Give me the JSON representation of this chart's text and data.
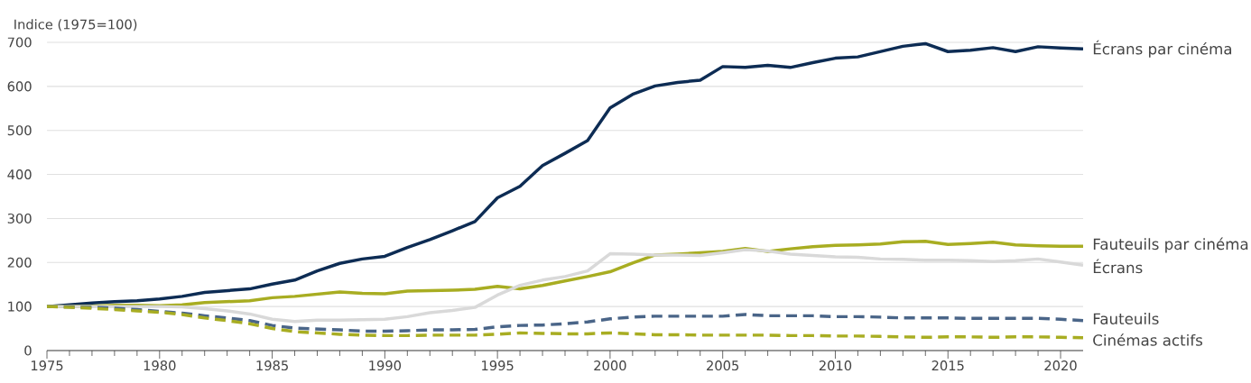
{
  "chart_data": {
    "type": "line",
    "ylabel": "Indice (1975=100)",
    "x": [
      1975,
      1976,
      1977,
      1978,
      1979,
      1980,
      1981,
      1982,
      1983,
      1984,
      1985,
      1986,
      1987,
      1988,
      1989,
      1990,
      1991,
      1992,
      1993,
      1994,
      1995,
      1996,
      1997,
      1998,
      1999,
      2000,
      2001,
      2002,
      2003,
      2004,
      2005,
      2006,
      2007,
      2008,
      2009,
      2010,
      2011,
      2012,
      2013,
      2014,
      2015,
      2016,
      2017,
      2018,
      2019,
      2020,
      2021
    ],
    "series": [
      {
        "name": "Écrans par cinéma",
        "color": "#0d2c54",
        "line_style": "solid",
        "values": [
          100,
          104,
          108,
          111,
          113,
          117,
          123,
          132,
          136,
          140,
          151,
          160,
          181,
          198,
          208,
          214,
          234,
          252,
          272,
          293,
          347,
          373,
          420,
          448,
          477,
          551,
          582,
          601,
          609,
          614,
          645,
          643,
          648,
          643,
          654,
          664,
          667,
          679,
          691,
          697,
          679,
          682,
          688,
          679,
          690,
          687,
          685
        ]
      },
      {
        "name": "Fauteuils par cinéma",
        "color": "#a8ad22",
        "line_style": "solid",
        "values": [
          100,
          100,
          101,
          103,
          103,
          102,
          104,
          109,
          111,
          113,
          120,
          123,
          128,
          133,
          130,
          129,
          135,
          136,
          137,
          139,
          146,
          140,
          148,
          158,
          168,
          179,
          199,
          217,
          219,
          222,
          225,
          232,
          225,
          231,
          236,
          239,
          240,
          242,
          247,
          248,
          241,
          243,
          246,
          240,
          238,
          237,
          237
        ]
      },
      {
        "name": "Écrans",
        "color": "#d9d9d9",
        "line_style": "solid",
        "values": [
          100,
          100,
          100,
          100,
          100,
          100,
          99,
          95,
          90,
          83,
          71,
          66,
          69,
          69,
          70,
          71,
          77,
          86,
          91,
          98,
          126,
          148,
          160,
          168,
          181,
          220,
          219,
          217,
          217,
          216,
          222,
          229,
          226,
          219,
          216,
          213,
          212,
          208,
          207,
          205,
          205,
          204,
          202,
          204,
          208,
          201,
          194
        ]
      },
      {
        "name": "Fauteuils",
        "color": "#4a6588",
        "line_style": "dashed",
        "values": [
          100,
          99,
          98,
          96,
          93,
          89,
          85,
          79,
          74,
          68,
          57,
          51,
          49,
          47,
          44,
          44,
          45,
          47,
          47,
          48,
          54,
          57,
          58,
          61,
          65,
          72,
          76,
          78,
          78,
          78,
          78,
          82,
          79,
          79,
          79,
          77,
          77,
          76,
          74,
          74,
          74,
          73,
          73,
          73,
          73,
          71,
          68
        ]
      },
      {
        "name": "Cinémas actifs",
        "color": "#a8ad22",
        "line_style": "dashed",
        "values": [
          100,
          98,
          96,
          93,
          90,
          87,
          82,
          74,
          68,
          61,
          50,
          43,
          40,
          37,
          35,
          34,
          34,
          35,
          35,
          35,
          37,
          40,
          39,
          38,
          38,
          40,
          38,
          36,
          36,
          35,
          35,
          35,
          35,
          34,
          34,
          33,
          33,
          32,
          31,
          30,
          31,
          31,
          30,
          31,
          31,
          30,
          29
        ]
      }
    ],
    "xlim": [
      1975,
      2021
    ],
    "xticks": [
      1975,
      1980,
      1985,
      1990,
      1995,
      2000,
      2005,
      2010,
      2015,
      2020
    ],
    "ylim": [
      0,
      700
    ],
    "yticks": [
      0,
      100,
      200,
      300,
      400,
      500,
      600,
      700
    ],
    "grid": "y",
    "legend": false
  }
}
